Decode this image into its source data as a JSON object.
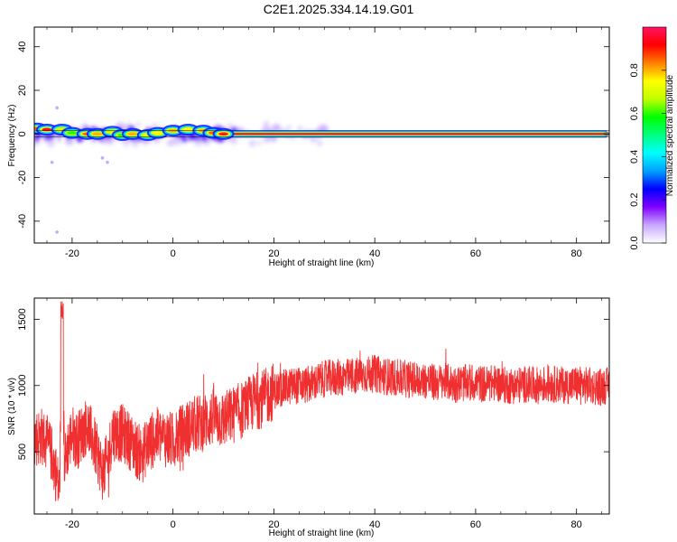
{
  "title": "C2E1.2025.334.14.19.G01",
  "colors": {
    "snr_line": "#f03030",
    "ridge_core": "#e8184a",
    "frame": "#000000"
  },
  "chart_data": [
    {
      "type": "heatmap",
      "name": "spectrogram",
      "xlabel": "Height of straight line (km)",
      "ylabel": "Frequency (Hz)",
      "xlim": [
        -27.5,
        86.5
      ],
      "ylim": [
        -50,
        49
      ],
      "xticks": [
        -20,
        0,
        20,
        40,
        60,
        80
      ],
      "yticks": [
        -40,
        -20,
        0,
        20,
        40
      ],
      "grid": false,
      "ridge_frequency_hz": 0,
      "colorbar": {
        "label": "Normalized spectral amplitude",
        "range": [
          0,
          1
        ],
        "ticks": [
          "0.0",
          "0.2",
          "0.4",
          "0.6",
          "0.8"
        ],
        "colormap": [
          "#ffffff",
          "#c8a8ff",
          "#8000ff",
          "#0000ff",
          "#00a0ff",
          "#00ffff",
          "#00ff80",
          "#00ff00",
          "#c0ff00",
          "#ffff00",
          "#ff8000",
          "#ff0000",
          "#ff1460"
        ]
      },
      "ridge_centers": [
        {
          "x": -27,
          "y": 2.5,
          "a": 0.85
        },
        {
          "x": -25,
          "y": 2.0,
          "a": 0.95
        },
        {
          "x": -22,
          "y": 2.0,
          "a": 0.7
        },
        {
          "x": -20,
          "y": 0.5,
          "a": 0.6
        },
        {
          "x": -17,
          "y": 0.0,
          "a": 0.85
        },
        {
          "x": -15,
          "y": 0.0,
          "a": 0.8
        },
        {
          "x": -12,
          "y": 1.0,
          "a": 0.7
        },
        {
          "x": -10,
          "y": -0.5,
          "a": 0.6
        },
        {
          "x": -8,
          "y": 0.0,
          "a": 0.8
        },
        {
          "x": -5,
          "y": -0.5,
          "a": 0.7
        },
        {
          "x": -3,
          "y": 0.5,
          "a": 0.75
        },
        {
          "x": 0,
          "y": 1.5,
          "a": 0.8
        },
        {
          "x": 3,
          "y": 2.0,
          "a": 0.75
        },
        {
          "x": 6,
          "y": 1.5,
          "a": 0.8
        },
        {
          "x": 8,
          "y": 0.5,
          "a": 0.85
        },
        {
          "x": 10,
          "y": 0.0,
          "a": 0.9
        }
      ],
      "scatter_faint": [
        {
          "x": -23,
          "y": 12
        },
        {
          "x": -24,
          "y": -13
        },
        {
          "x": -14,
          "y": -11
        },
        {
          "x": -13,
          "y": -13
        },
        {
          "x": -23,
          "y": -45
        }
      ]
    },
    {
      "type": "line",
      "name": "snr",
      "xlabel": "Height of straight line (km)",
      "ylabel": "SNR (10 * v/v)",
      "xlim": [
        -27.5,
        86.5
      ],
      "ylim": [
        30,
        1660
      ],
      "xticks": [
        -20,
        0,
        20,
        40,
        60,
        80
      ],
      "yticks": [
        500,
        1000,
        1500
      ],
      "grid": false,
      "series": [
        {
          "envelope": [
            [
              -27.5,
              600
            ],
            [
              -26,
              620
            ],
            [
              -25,
              560
            ],
            [
              -24,
              480
            ],
            [
              -23,
              300
            ],
            [
              -22.5,
              200
            ],
            [
              -22,
              1400
            ],
            [
              -21.5,
              400
            ],
            [
              -21,
              520
            ],
            [
              -20,
              640
            ],
            [
              -19,
              580
            ],
            [
              -18,
              650
            ],
            [
              -17,
              700
            ],
            [
              -16,
              600
            ],
            [
              -15,
              480
            ],
            [
              -14,
              350
            ],
            [
              -13,
              420
            ],
            [
              -12,
              650
            ],
            [
              -11,
              640
            ],
            [
              -10,
              640
            ],
            [
              -9,
              600
            ],
            [
              -8,
              560
            ],
            [
              -7,
              500
            ],
            [
              -6,
              480
            ],
            [
              -5,
              560
            ],
            [
              -3,
              620
            ],
            [
              0,
              580
            ],
            [
              2,
              650
            ],
            [
              4,
              700
            ],
            [
              6,
              720
            ],
            [
              8,
              760
            ],
            [
              10,
              740
            ],
            [
              12,
              780
            ],
            [
              14,
              820
            ],
            [
              16,
              880
            ],
            [
              18,
              900
            ],
            [
              20,
              960
            ],
            [
              22,
              980
            ],
            [
              24,
              1000
            ],
            [
              26,
              1000
            ],
            [
              28,
              1020
            ],
            [
              30,
              1050
            ],
            [
              32,
              1060
            ],
            [
              34,
              1060
            ],
            [
              36,
              1070
            ],
            [
              38,
              1080
            ],
            [
              40,
              1090
            ],
            [
              42,
              1070
            ],
            [
              44,
              1060
            ],
            [
              46,
              1050
            ],
            [
              48,
              1040
            ],
            [
              50,
              1040
            ],
            [
              52,
              1020
            ],
            [
              54,
              1030
            ],
            [
              56,
              1010
            ],
            [
              58,
              1020
            ],
            [
              60,
              1020
            ],
            [
              62,
              1010
            ],
            [
              64,
              1020
            ],
            [
              66,
              1000
            ],
            [
              68,
              1000
            ],
            [
              70,
              1010
            ],
            [
              72,
              1000
            ],
            [
              74,
              1010
            ],
            [
              76,
              1010
            ],
            [
              78,
              1000
            ],
            [
              80,
              1010
            ],
            [
              82,
              1000
            ],
            [
              84,
              990
            ],
            [
              86.5,
              1000
            ]
          ]
        }
      ]
    }
  ]
}
